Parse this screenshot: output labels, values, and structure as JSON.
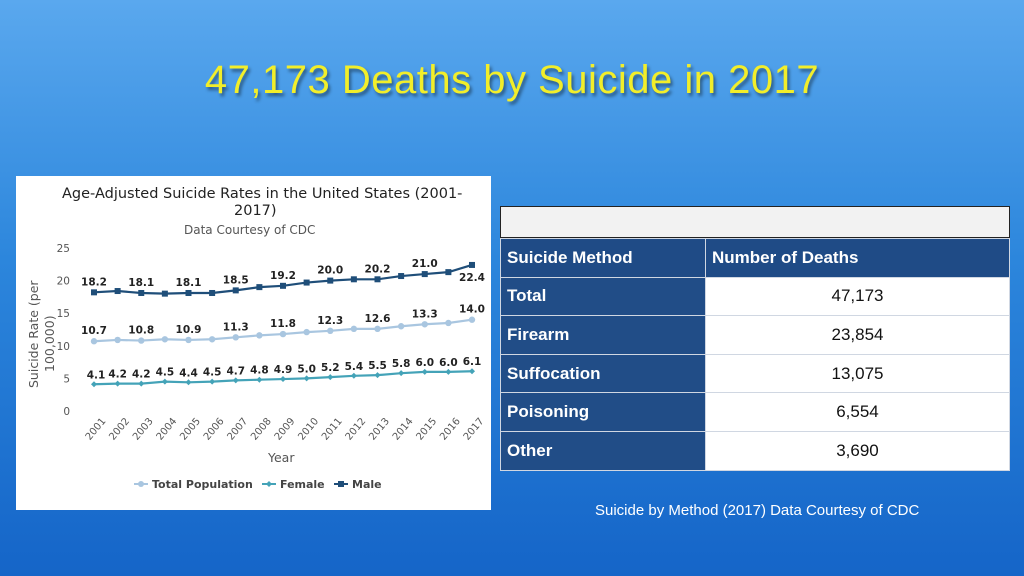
{
  "slide": {
    "title": "47,173 Deaths by Suicide in 2017"
  },
  "chart_data": {
    "type": "line",
    "title": "Age-Adjusted Suicide Rates in the United States (2001-2017)",
    "title_line1": "Age-Adjusted Suicide Rates in the United States (2001-",
    "title_line2": "2017)",
    "subtitle": "Data Courtesy of CDC",
    "xlabel": "Year",
    "ylabel": "Suicide Rate (per 100,000)",
    "ylabel_line1": "Suicide Rate (per",
    "ylabel_line2": "100,000)",
    "ylim": [
      0,
      25
    ],
    "yticks": [
      0,
      5,
      10,
      15,
      20,
      25
    ],
    "grid": false,
    "legend_position": "bottom",
    "x": [
      "2001",
      "2002",
      "2003",
      "2004",
      "2005",
      "2006",
      "2007",
      "2008",
      "2009",
      "2010",
      "2011",
      "2012",
      "2013",
      "2014",
      "2015",
      "2016",
      "2017"
    ],
    "series": [
      {
        "name": "Total Population",
        "color": "#a9c6e0",
        "marker": "circle",
        "values": [
          10.7,
          10.9,
          10.8,
          11.0,
          10.9,
          11.0,
          11.3,
          11.6,
          11.8,
          12.1,
          12.3,
          12.6,
          12.6,
          13.0,
          13.3,
          13.5,
          14.0
        ],
        "labels": {
          "0": "10.7",
          "2": "10.8",
          "4": "10.9",
          "6": "11.3",
          "8": "11.8",
          "10": "12.3",
          "12": "12.6",
          "14": "13.3",
          "16": "14.0"
        }
      },
      {
        "name": "Female",
        "color": "#44a3b8",
        "marker": "diamond",
        "values": [
          4.1,
          4.2,
          4.2,
          4.5,
          4.4,
          4.5,
          4.7,
          4.8,
          4.9,
          5.0,
          5.2,
          5.4,
          5.5,
          5.8,
          6.0,
          6.0,
          6.1
        ],
        "labels": {
          "0": "4.1",
          "1": "4.2",
          "2": "4.2",
          "3": "4.5",
          "4": "4.4",
          "5": "4.5",
          "6": "4.7",
          "7": "4.8",
          "8": "4.9",
          "9": "5.0",
          "10": "5.2",
          "11": "5.4",
          "12": "5.5",
          "13": "5.8",
          "14": "6.0",
          "15": "6.0",
          "16": "6.1"
        }
      },
      {
        "name": "Male",
        "color": "#1f4e79",
        "marker": "square",
        "values": [
          18.2,
          18.4,
          18.1,
          18.0,
          18.1,
          18.1,
          18.5,
          19.0,
          19.2,
          19.7,
          20.0,
          20.2,
          20.2,
          20.7,
          21.0,
          21.3,
          22.4
        ],
        "labels": {
          "0": "18.2",
          "2": "18.1",
          "4": "18.1",
          "6": "18.5",
          "8": "19.2",
          "10": "20.0",
          "12": "20.2",
          "14": "21.0",
          "16": "22.4"
        }
      }
    ]
  },
  "table": {
    "headers": [
      "Suicide Method",
      "Number of Deaths"
    ],
    "rows": [
      {
        "method": "Total",
        "deaths": "47,173"
      },
      {
        "method": "Firearm",
        "deaths": "23,854"
      },
      {
        "method": "Suffocation",
        "deaths": "13,075"
      },
      {
        "method": "Poisoning",
        "deaths": "6,554"
      },
      {
        "method": "Other",
        "deaths": "3,690"
      }
    ],
    "caption": "Suicide by Method (2017) Data Courtesy of CDC"
  },
  "colors": {
    "title": "#f2ee2a",
    "table_header": "#1f4b86",
    "table_method_cell": "#214d87"
  }
}
